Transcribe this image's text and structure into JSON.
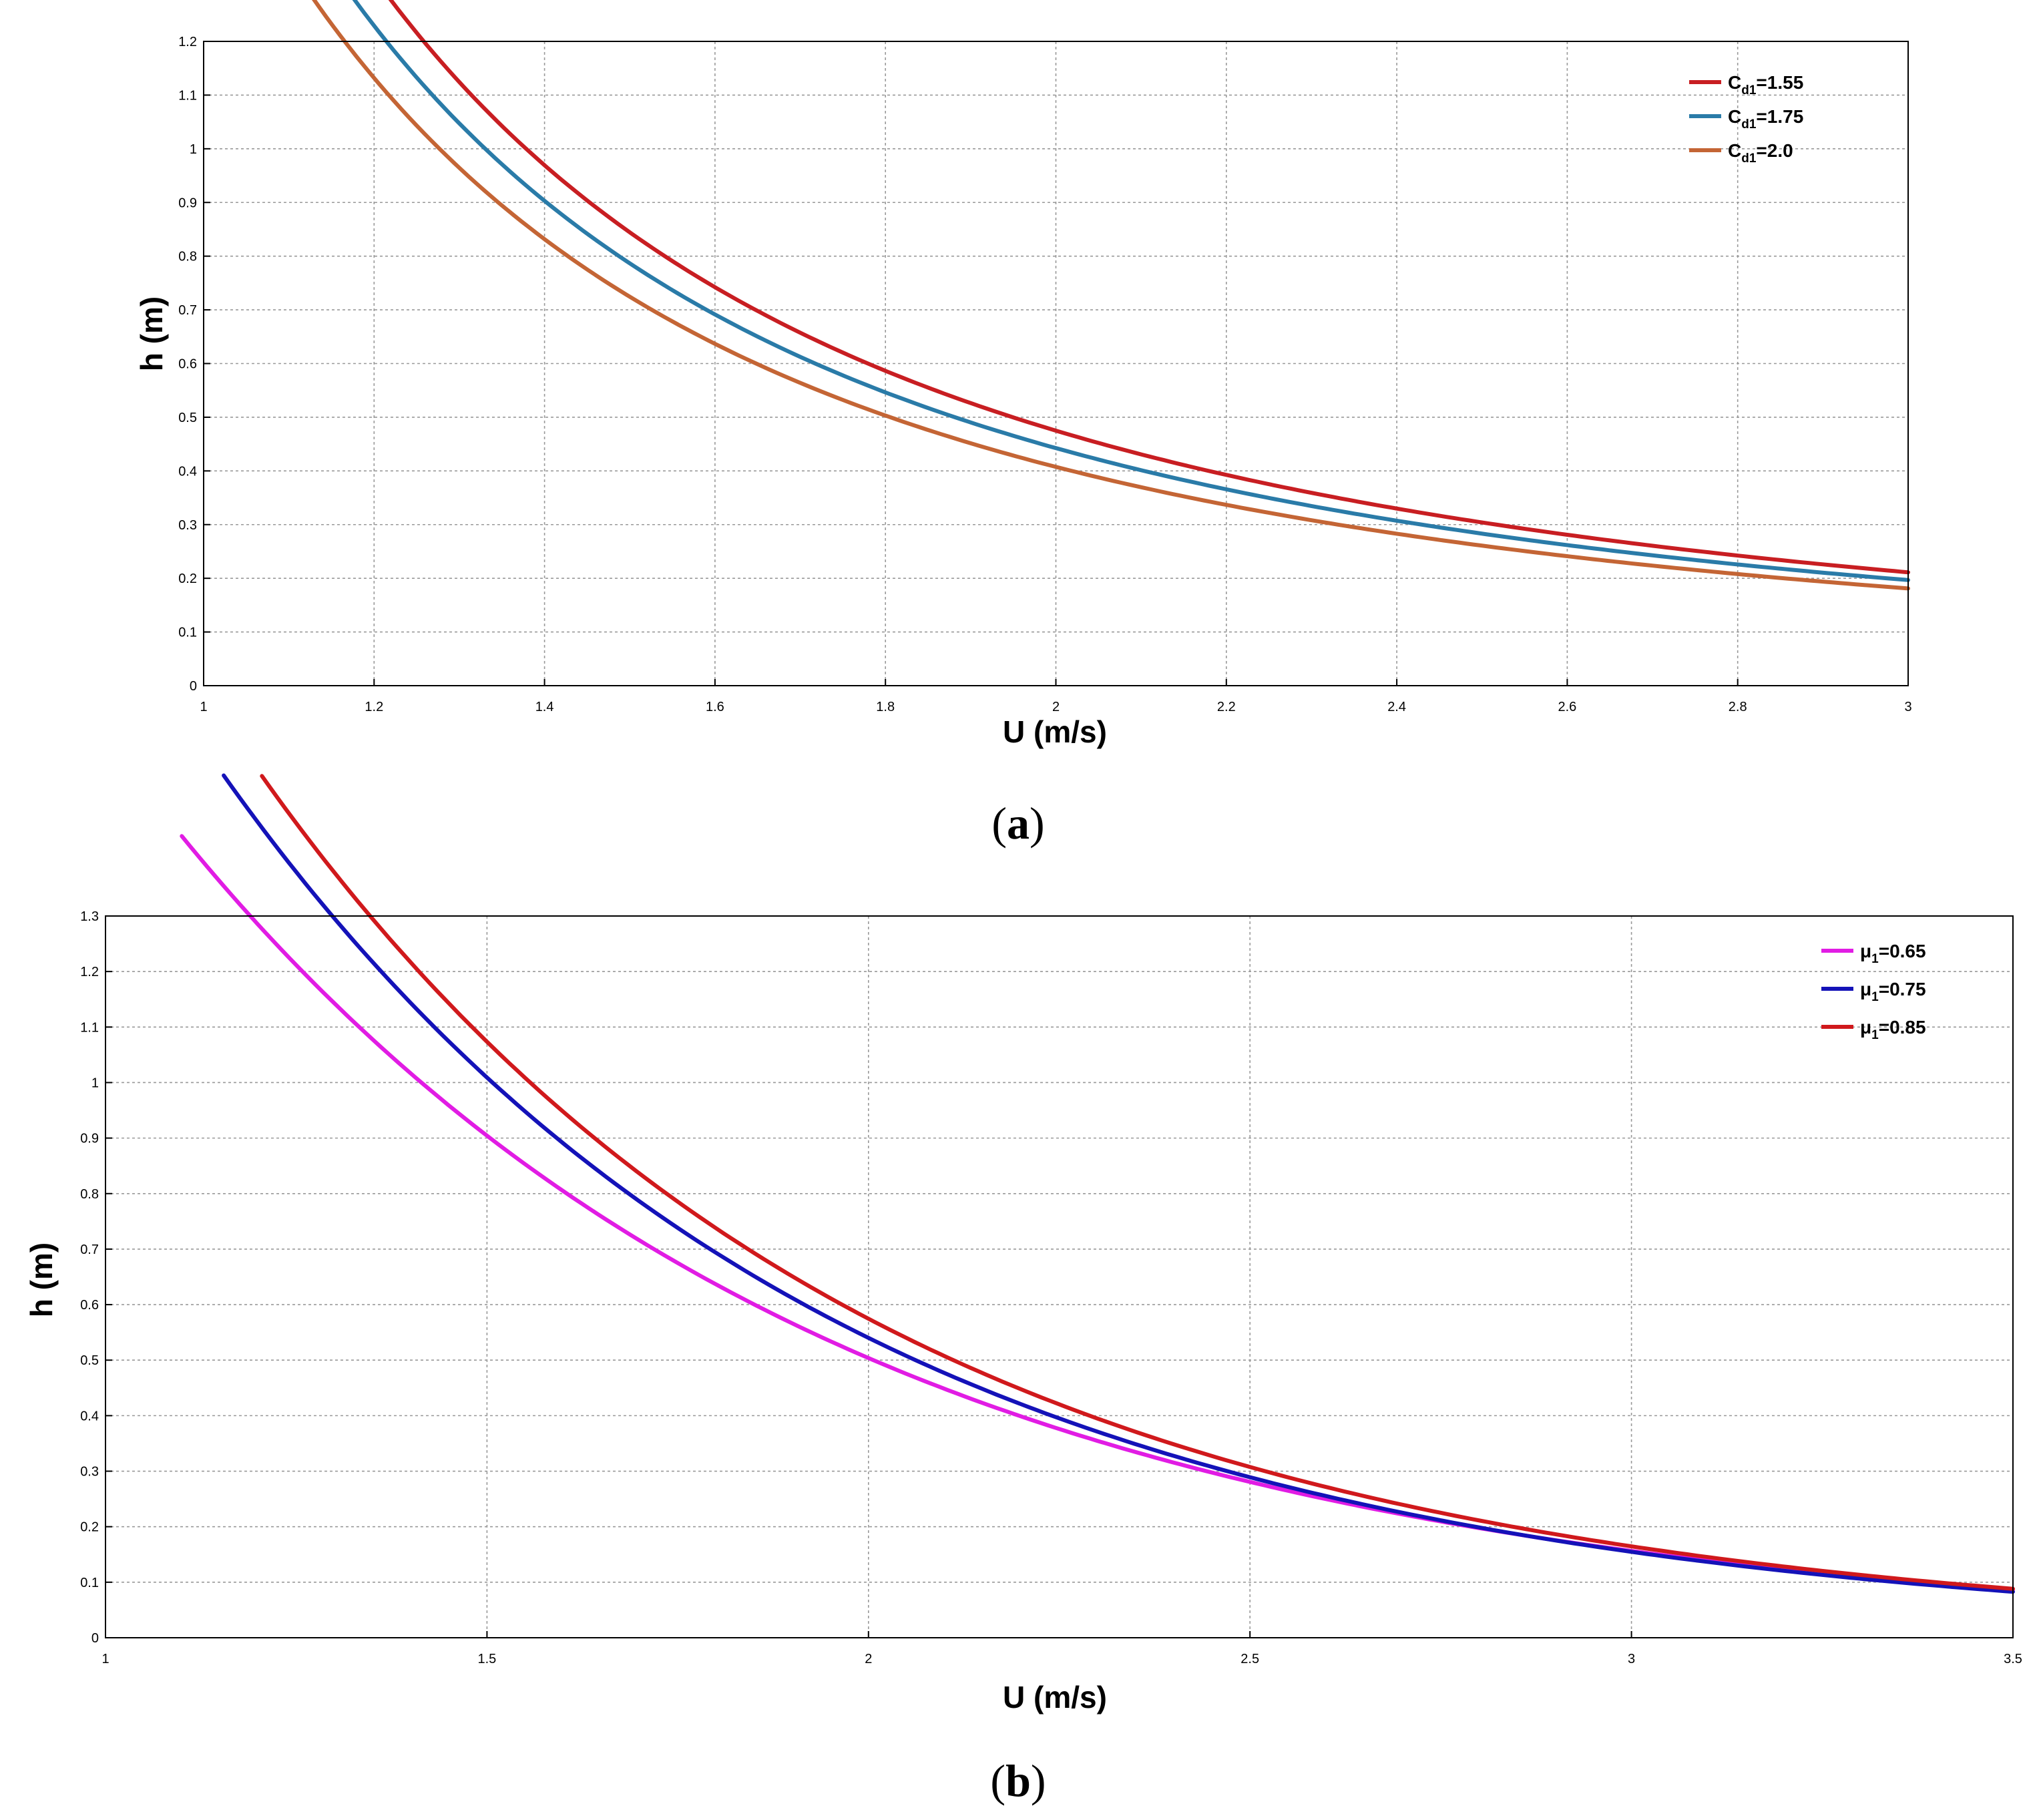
{
  "chart_data": [
    {
      "id": "a",
      "type": "line",
      "caption_letter": "a",
      "xlabel": "U (m/s)",
      "ylabel": "h (m)",
      "xlim": [
        1,
        3
      ],
      "ylim": [
        0,
        1.2
      ],
      "x_ticks": [
        "1",
        "1.2",
        "1.4",
        "1.6",
        "1.8",
        "2",
        "2.2",
        "2.4",
        "2.6",
        "2.8",
        "3"
      ],
      "y_ticks": [
        "0",
        "0.1",
        "0.2",
        "0.3",
        "0.4",
        "0.5",
        "0.6",
        "0.7",
        "0.8",
        "0.9",
        "1",
        "1.1",
        "1.2"
      ],
      "grid": true,
      "legend_position": "top-right",
      "series": [
        {
          "name": "C",
          "subscript": "d1",
          "value_text": "=1.55",
          "color": "#c81e22",
          "model": "k/U^2",
          "k": 1.9,
          "x_start": 1.17,
          "x_end": 3.0
        },
        {
          "name": "C",
          "subscript": "d1",
          "value_text": "=1.75",
          "color": "#2a7ba8",
          "model": "k/U^2",
          "k": 1.77,
          "x_start": 1.12,
          "x_end": 3.0
        },
        {
          "name": "C",
          "subscript": "d1",
          "value_text": "=2.0",
          "color": "#c46535",
          "model": "k/U^2",
          "k": 1.63,
          "x_start": 1.065,
          "x_end": 3.0
        }
      ]
    },
    {
      "id": "b",
      "type": "line",
      "caption_letter": "b",
      "xlabel": "U (m/s)",
      "ylabel": "h (m)",
      "xlim": [
        1,
        3.5
      ],
      "ylim": [
        0,
        1.3
      ],
      "x_ticks": [
        "1",
        "1.5",
        "2",
        "2.5",
        "3",
        "3.5"
      ],
      "y_ticks": [
        "0",
        "0.1",
        "0.2",
        "0.3",
        "0.4",
        "0.5",
        "0.6",
        "0.7",
        "0.8",
        "0.9",
        "1",
        "1.1",
        "1.2",
        "1.3"
      ],
      "grid": true,
      "legend_position": "top-right",
      "series": [
        {
          "name": "μ",
          "subscript": "1",
          "value_text": "=0.65",
          "color": "#e11ce4",
          "model": "a*exp(-b*U)",
          "a": 5.23,
          "b": 1.17,
          "x_start": 1.1,
          "x_end": 3.5
        },
        {
          "name": "μ",
          "subscript": "1",
          "value_text": "=0.75",
          "color": "#1412b8",
          "model": "a*exp(-b*U)",
          "a": 6.58,
          "b": 1.25,
          "x_start": 1.155,
          "x_end": 3.5
        },
        {
          "name": "μ",
          "subscript": "1",
          "value_text": "=0.85",
          "color": "#d0191c",
          "model": "a*exp(-b*U)",
          "a": 7.0,
          "b": 1.25,
          "x_start": 1.205,
          "x_end": 3.5
        }
      ]
    }
  ]
}
